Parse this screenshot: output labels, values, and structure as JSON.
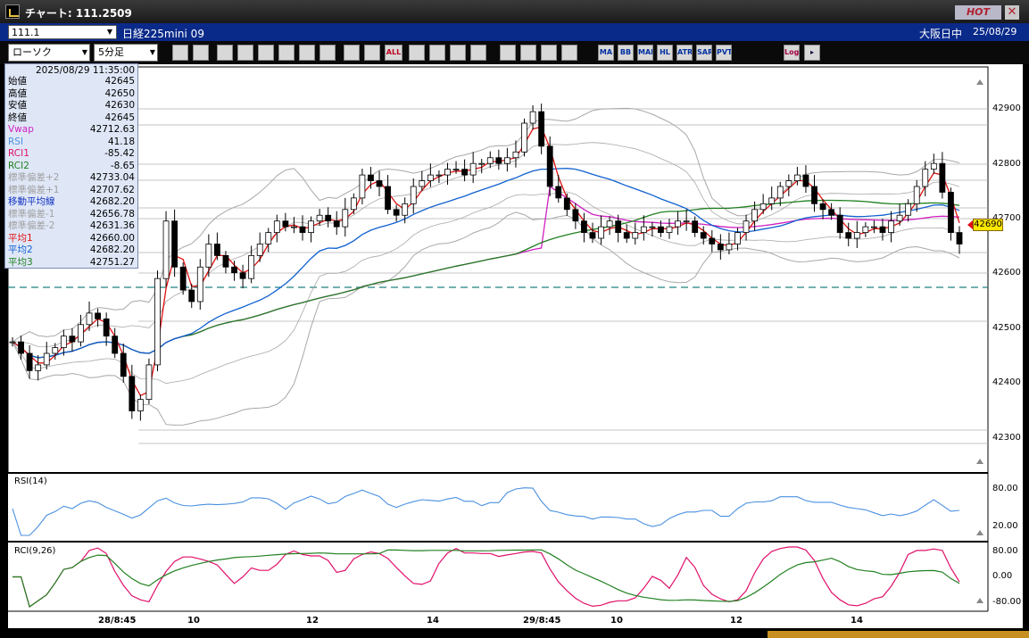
{
  "window": {
    "title": "チャート: 111.2509",
    "hot_label": "HOT",
    "close_glyph": "✕"
  },
  "symbol": {
    "code": "111.1",
    "name": "日経225mini 09",
    "market": "大阪日中",
    "date": "25/08/29"
  },
  "toolbar": {
    "chart_type": "ローソク",
    "interval": "5分足",
    "buttons": [
      "zoom-icon",
      "grid-icon",
      "pen-icon",
      "brush-icon",
      "pointer-icon",
      "arrow-icon",
      "memo-icon",
      "trash-icon",
      "candle-icon",
      "candle2-icon",
      "all-icon",
      "trend-icon",
      "search-icon",
      "bars-icon",
      "updown-icon",
      "percent-icon",
      "fib-icon",
      "wrench-icon",
      "palette-icon"
    ],
    "indicator_buttons": [
      "MA",
      "BB",
      "MAE",
      "HL",
      "ATR",
      "SAR",
      "PVT"
    ],
    "all_label": "ALL",
    "log_label": "Log"
  },
  "info": {
    "datetime": "2025/08/29  11:35:00",
    "rows": [
      {
        "label": "始値",
        "value": "42645",
        "color": "#000000"
      },
      {
        "label": "高値",
        "value": "42650",
        "color": "#000000"
      },
      {
        "label": "安値",
        "value": "42630",
        "color": "#000000"
      },
      {
        "label": "終値",
        "value": "42645",
        "color": "#000000"
      },
      {
        "label": "Vwap",
        "value": "42712.63",
        "color": "#d020c0"
      },
      {
        "label": "RSI",
        "value": "41.18",
        "color": "#4a90e0"
      },
      {
        "label": "RCI1",
        "value": "-85.42",
        "color": "#e0106a"
      },
      {
        "label": "RCI2",
        "value": "-8.65",
        "color": "#208020"
      },
      {
        "label": "標準偏差+2",
        "value": "42733.04",
        "color": "#a0a0a0"
      },
      {
        "label": "標準偏差+1",
        "value": "42707.62",
        "color": "#a0a0a0"
      },
      {
        "label": "移動平均線",
        "value": "42682.20",
        "color": "#1030c0"
      },
      {
        "label": "標準偏差-1",
        "value": "42656.78",
        "color": "#a0a0a0"
      },
      {
        "label": "標準偏差-2",
        "value": "42631.36",
        "color": "#a0a0a0"
      },
      {
        "label": "平均1",
        "value": "42660.00",
        "color": "#e01010"
      },
      {
        "label": "平均2",
        "value": "42682.20",
        "color": "#1060d0"
      },
      {
        "label": "平均3",
        "value": "42751.27",
        "color": "#208020"
      }
    ]
  },
  "price_axis": {
    "ticks": [
      "42900",
      "42800",
      "42700",
      "42600",
      "42500",
      "42400",
      "42300"
    ],
    "current": "42690"
  },
  "time_axis": {
    "ticks": [
      "28/8:45",
      "10",
      "12",
      "14",
      "29/8:45",
      "10",
      "12",
      "14"
    ]
  },
  "panels": {
    "rsi_title": "RSI(14)",
    "rsi_ticks": [
      "80.00",
      "20.00"
    ],
    "rci_title": "RCI(9,26)",
    "rci_ticks": [
      "80.00",
      "0.00",
      "-80.00"
    ]
  },
  "colors": {
    "ma_red": "#e01010",
    "ma_blue": "#1060d0",
    "ma_green": "#208020",
    "vwap": "#d020c0",
    "band": "#a8a8a8",
    "rsi": "#4a90e0",
    "rci_fast": "#e0106a",
    "rci_slow": "#208020",
    "dashed": "#208080"
  },
  "chart_data": {
    "type": "candlestick",
    "ylim": [
      42270,
      42960
    ],
    "closes": [
      42490,
      42470,
      42440,
      42450,
      42470,
      42480,
      42500,
      42490,
      42520,
      42540,
      42530,
      42500,
      42470,
      42430,
      42370,
      42390,
      42450,
      42600,
      42700,
      42620,
      42580,
      42560,
      42620,
      42660,
      42640,
      42620,
      42610,
      42600,
      42640,
      42660,
      42680,
      42700,
      42690,
      42690,
      42680,
      42700,
      42710,
      42700,
      42690,
      42720,
      42740,
      42780,
      42770,
      42760,
      42720,
      42710,
      42730,
      42760,
      42770,
      42780,
      42780,
      42790,
      42790,
      42780,
      42800,
      42800,
      42810,
      42800,
      42810,
      42820,
      42870,
      42890,
      42830,
      42760,
      42740,
      42720,
      42700,
      42680,
      42670,
      42690,
      42700,
      42680,
      42670,
      42680,
      42690,
      42690,
      42680,
      42690,
      42700,
      42700,
      42680,
      42670,
      42660,
      42650,
      42660,
      42680,
      42700,
      42720,
      42730,
      42740,
      42760,
      42770,
      42780,
      42760,
      42730,
      42720,
      42710,
      42680,
      42670,
      42680,
      42690,
      42690,
      42680,
      42700,
      42710,
      42730,
      42760,
      42790,
      42800,
      42750,
      42680,
      42660
    ]
  }
}
